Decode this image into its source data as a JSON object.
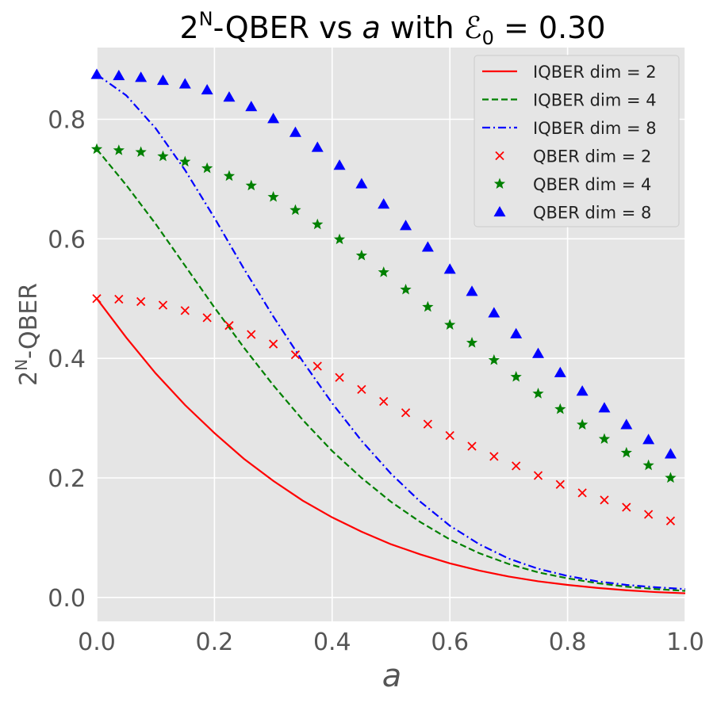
{
  "chart_data": {
    "type": "line",
    "title_parts": {
      "base": "2",
      "sup": "N",
      "rest": "-QBER vs ",
      "var": "a",
      "with": " with ",
      "eps": "ℰ",
      "eps_sub": "0",
      "eq": " = 0.30"
    },
    "xlabel": "a",
    "ylabel_parts": {
      "base": "2",
      "sup": "N",
      "rest": "-QBER"
    },
    "xlim": [
      0.0,
      1.0
    ],
    "ylim": [
      -0.04,
      0.92
    ],
    "xticks": [
      "0.0",
      "0.2",
      "0.4",
      "0.6",
      "0.8",
      "1.0"
    ],
    "yticks": [
      "0.0",
      "0.2",
      "0.4",
      "0.6",
      "0.8"
    ],
    "grid": true,
    "legend_position": "top-right",
    "series": [
      {
        "name": "IQBER dim = 2",
        "kind": "line",
        "style": "solid",
        "color": "#ff0000",
        "x": [
          0.0,
          0.05,
          0.1,
          0.15,
          0.2,
          0.25,
          0.3,
          0.35,
          0.4,
          0.45,
          0.5,
          0.55,
          0.6,
          0.65,
          0.7,
          0.75,
          0.8,
          0.85,
          0.9,
          0.95,
          1.0
        ],
        "y": [
          0.5,
          0.435,
          0.375,
          0.322,
          0.275,
          0.232,
          0.195,
          0.162,
          0.134,
          0.11,
          0.089,
          0.072,
          0.057,
          0.045,
          0.035,
          0.027,
          0.021,
          0.016,
          0.012,
          0.009,
          0.007
        ]
      },
      {
        "name": "IQBER dim = 4",
        "kind": "line",
        "style": "dashed",
        "color": "#008000",
        "x": [
          0.0,
          0.05,
          0.1,
          0.15,
          0.2,
          0.25,
          0.3,
          0.35,
          0.4,
          0.45,
          0.5,
          0.55,
          0.6,
          0.65,
          0.7,
          0.75,
          0.8,
          0.85,
          0.9,
          0.95,
          1.0
        ],
        "y": [
          0.75,
          0.69,
          0.625,
          0.555,
          0.485,
          0.418,
          0.355,
          0.297,
          0.245,
          0.2,
          0.16,
          0.126,
          0.097,
          0.074,
          0.056,
          0.042,
          0.032,
          0.024,
          0.018,
          0.014,
          0.011
        ]
      },
      {
        "name": "IQBER dim = 8",
        "kind": "line",
        "style": "dashdot",
        "color": "#0000ff",
        "x": [
          0.0,
          0.05,
          0.1,
          0.15,
          0.2,
          0.25,
          0.3,
          0.35,
          0.4,
          0.45,
          0.5,
          0.55,
          0.6,
          0.65,
          0.7,
          0.75,
          0.8,
          0.85,
          0.9,
          0.95,
          1.0
        ],
        "y": [
          0.875,
          0.84,
          0.785,
          0.715,
          0.635,
          0.55,
          0.47,
          0.395,
          0.325,
          0.262,
          0.207,
          0.16,
          0.12,
          0.089,
          0.065,
          0.048,
          0.036,
          0.027,
          0.021,
          0.017,
          0.014
        ]
      },
      {
        "name": "QBER dim = 2",
        "kind": "scatter",
        "marker": "x",
        "color": "#ff0000",
        "x": [
          0.0,
          0.0375,
          0.075,
          0.1125,
          0.15,
          0.1875,
          0.225,
          0.2625,
          0.3,
          0.3375,
          0.375,
          0.4125,
          0.45,
          0.4875,
          0.525,
          0.5625,
          0.6,
          0.6375,
          0.675,
          0.7125,
          0.75,
          0.7875,
          0.825,
          0.8625,
          0.9,
          0.9375,
          0.975
        ],
        "y": [
          0.5,
          0.499,
          0.495,
          0.489,
          0.48,
          0.468,
          0.455,
          0.44,
          0.424,
          0.406,
          0.387,
          0.368,
          0.348,
          0.328,
          0.309,
          0.29,
          0.271,
          0.253,
          0.236,
          0.22,
          0.204,
          0.189,
          0.175,
          0.163,
          0.151,
          0.139,
          0.128
        ]
      },
      {
        "name": "QBER dim = 4",
        "kind": "scatter",
        "marker": "star",
        "color": "#008000",
        "x": [
          0.0,
          0.0375,
          0.075,
          0.1125,
          0.15,
          0.1875,
          0.225,
          0.2625,
          0.3,
          0.3375,
          0.375,
          0.4125,
          0.45,
          0.4875,
          0.525,
          0.5625,
          0.6,
          0.6375,
          0.675,
          0.7125,
          0.75,
          0.7875,
          0.825,
          0.8625,
          0.9,
          0.9375,
          0.975
        ],
        "y": [
          0.75,
          0.748,
          0.745,
          0.738,
          0.729,
          0.718,
          0.705,
          0.689,
          0.67,
          0.648,
          0.624,
          0.599,
          0.572,
          0.544,
          0.515,
          0.486,
          0.456,
          0.426,
          0.397,
          0.369,
          0.341,
          0.315,
          0.289,
          0.265,
          0.242,
          0.221,
          0.2
        ]
      },
      {
        "name": "QBER dim = 8",
        "kind": "scatter",
        "marker": "triangle",
        "color": "#0000ff",
        "x": [
          0.0,
          0.0375,
          0.075,
          0.1125,
          0.15,
          0.1875,
          0.225,
          0.2625,
          0.3,
          0.3375,
          0.375,
          0.4125,
          0.45,
          0.4875,
          0.525,
          0.5625,
          0.6,
          0.6375,
          0.675,
          0.7125,
          0.75,
          0.7875,
          0.825,
          0.8625,
          0.9,
          0.9375,
          0.975
        ],
        "y": [
          0.875,
          0.873,
          0.87,
          0.865,
          0.859,
          0.849,
          0.837,
          0.821,
          0.801,
          0.778,
          0.753,
          0.723,
          0.692,
          0.658,
          0.622,
          0.586,
          0.549,
          0.512,
          0.476,
          0.441,
          0.408,
          0.376,
          0.345,
          0.317,
          0.289,
          0.264,
          0.24
        ]
      }
    ]
  }
}
